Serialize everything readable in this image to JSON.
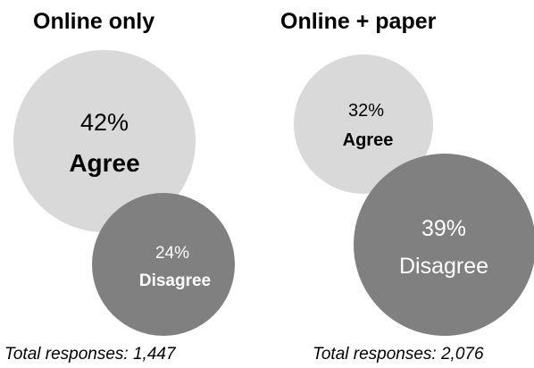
{
  "chart_data": [
    {
      "type": "bubble",
      "title": "Online only",
      "series": [
        {
          "name": "Agree",
          "percent": 42,
          "color": "#d9d9d9",
          "label_color": "#000000"
        },
        {
          "name": "Disagree",
          "percent": 24,
          "color": "#808080",
          "label_color": "#ffffff"
        }
      ],
      "total_responses": "Total responses: 1,447"
    },
    {
      "type": "bubble",
      "title": "Online + paper",
      "series": [
        {
          "name": "Agree",
          "percent": 32,
          "color": "#d9d9d9",
          "label_color": "#000000"
        },
        {
          "name": "Disagree",
          "percent": 39,
          "color": "#808080",
          "label_color": "#ffffff"
        }
      ],
      "total_responses": "Total responses: 2,076"
    }
  ],
  "labels": {
    "left_agree_pct": "42%",
    "left_agree": "Agree",
    "left_disagree_pct": "24%",
    "left_disagree": "Disagree",
    "right_agree_pct": "32%",
    "right_agree": "Agree",
    "right_disagree_pct": "39%",
    "right_disagree": "Disagree"
  }
}
